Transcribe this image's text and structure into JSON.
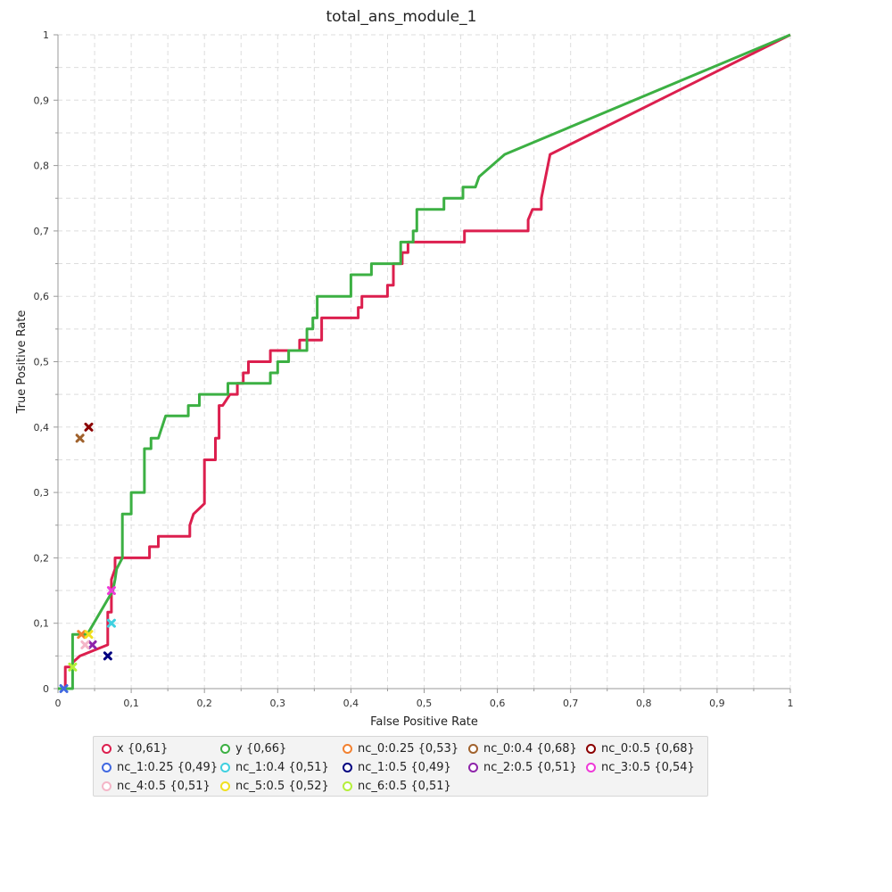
{
  "chart_data": {
    "type": "line",
    "title": "total_ans_module_1",
    "xlabel": "False Positive Rate",
    "ylabel": "True Positive Rate",
    "xlim": [
      0,
      1
    ],
    "ylim": [
      0,
      1
    ],
    "x_ticks": [
      "0",
      "0,1",
      "0,2",
      "0,3",
      "0,4",
      "0,5",
      "0,6",
      "0,7",
      "0,8",
      "0,9",
      "1"
    ],
    "y_ticks": [
      "0",
      "0,1",
      "0,2",
      "0,3",
      "0,4",
      "0,5",
      "0,6",
      "0,7",
      "0,8",
      "0,9",
      "1"
    ],
    "grid": true,
    "legend_position": "bottom",
    "series": [
      {
        "name": "x {0,61}",
        "color": "#dc1f4e",
        "kind": "line",
        "points": [
          [
            0,
            0
          ],
          [
            0.01,
            0
          ],
          [
            0.01,
            0.033
          ],
          [
            0.02,
            0.033
          ],
          [
            0.02,
            0.04
          ],
          [
            0.03,
            0.05
          ],
          [
            0.068,
            0.067
          ],
          [
            0.068,
            0.117
          ],
          [
            0.073,
            0.117
          ],
          [
            0.073,
            0.167
          ],
          [
            0.078,
            0.183
          ],
          [
            0.078,
            0.2
          ],
          [
            0.125,
            0.2
          ],
          [
            0.125,
            0.217
          ],
          [
            0.137,
            0.217
          ],
          [
            0.137,
            0.233
          ],
          [
            0.18,
            0.233
          ],
          [
            0.18,
            0.25
          ],
          [
            0.185,
            0.267
          ],
          [
            0.2,
            0.283
          ],
          [
            0.2,
            0.35
          ],
          [
            0.215,
            0.35
          ],
          [
            0.215,
            0.383
          ],
          [
            0.22,
            0.383
          ],
          [
            0.22,
            0.433
          ],
          [
            0.225,
            0.433
          ],
          [
            0.235,
            0.45
          ],
          [
            0.245,
            0.45
          ],
          [
            0.245,
            0.467
          ],
          [
            0.253,
            0.467
          ],
          [
            0.253,
            0.483
          ],
          [
            0.26,
            0.483
          ],
          [
            0.26,
            0.5
          ],
          [
            0.29,
            0.5
          ],
          [
            0.29,
            0.517
          ],
          [
            0.33,
            0.517
          ],
          [
            0.33,
            0.533
          ],
          [
            0.36,
            0.533
          ],
          [
            0.36,
            0.567
          ],
          [
            0.41,
            0.567
          ],
          [
            0.41,
            0.583
          ],
          [
            0.415,
            0.583
          ],
          [
            0.415,
            0.6
          ],
          [
            0.45,
            0.6
          ],
          [
            0.45,
            0.617
          ],
          [
            0.458,
            0.617
          ],
          [
            0.458,
            0.65
          ],
          [
            0.47,
            0.65
          ],
          [
            0.47,
            0.667
          ],
          [
            0.478,
            0.667
          ],
          [
            0.478,
            0.683
          ],
          [
            0.555,
            0.683
          ],
          [
            0.555,
            0.7
          ],
          [
            0.642,
            0.7
          ],
          [
            0.642,
            0.717
          ],
          [
            0.648,
            0.733
          ],
          [
            0.66,
            0.733
          ],
          [
            0.66,
            0.75
          ],
          [
            0.672,
            0.817
          ],
          [
            1,
            1
          ]
        ]
      },
      {
        "name": "y {0,66}",
        "color": "#3cb043",
        "kind": "line",
        "points": [
          [
            0,
            0
          ],
          [
            0.02,
            0
          ],
          [
            0.02,
            0.083
          ],
          [
            0.04,
            0.083
          ],
          [
            0.075,
            0.15
          ],
          [
            0.078,
            0.167
          ],
          [
            0.08,
            0.183
          ],
          [
            0.088,
            0.2
          ],
          [
            0.088,
            0.267
          ],
          [
            0.1,
            0.267
          ],
          [
            0.1,
            0.3
          ],
          [
            0.118,
            0.3
          ],
          [
            0.118,
            0.367
          ],
          [
            0.127,
            0.367
          ],
          [
            0.127,
            0.383
          ],
          [
            0.137,
            0.383
          ],
          [
            0.147,
            0.417
          ],
          [
            0.178,
            0.417
          ],
          [
            0.178,
            0.433
          ],
          [
            0.193,
            0.433
          ],
          [
            0.193,
            0.45
          ],
          [
            0.232,
            0.45
          ],
          [
            0.232,
            0.467
          ],
          [
            0.29,
            0.467
          ],
          [
            0.29,
            0.483
          ],
          [
            0.3,
            0.483
          ],
          [
            0.3,
            0.5
          ],
          [
            0.315,
            0.5
          ],
          [
            0.315,
            0.517
          ],
          [
            0.34,
            0.517
          ],
          [
            0.34,
            0.55
          ],
          [
            0.348,
            0.55
          ],
          [
            0.348,
            0.567
          ],
          [
            0.354,
            0.567
          ],
          [
            0.354,
            0.6
          ],
          [
            0.4,
            0.6
          ],
          [
            0.4,
            0.633
          ],
          [
            0.428,
            0.633
          ],
          [
            0.428,
            0.65
          ],
          [
            0.468,
            0.65
          ],
          [
            0.468,
            0.683
          ],
          [
            0.485,
            0.683
          ],
          [
            0.485,
            0.7
          ],
          [
            0.49,
            0.7
          ],
          [
            0.49,
            0.733
          ],
          [
            0.527,
            0.733
          ],
          [
            0.527,
            0.75
          ],
          [
            0.553,
            0.75
          ],
          [
            0.553,
            0.767
          ],
          [
            0.57,
            0.767
          ],
          [
            0.575,
            0.783
          ],
          [
            0.61,
            0.817
          ],
          [
            1,
            1
          ]
        ]
      },
      {
        "name": "nc_0:0.25 {0,53}",
        "color": "#f28130",
        "kind": "point",
        "points": [
          [
            0.032,
            0.083
          ]
        ]
      },
      {
        "name": "nc_0:0.4 {0,68}",
        "color": "#a0622d",
        "kind": "point",
        "points": [
          [
            0.03,
            0.383
          ]
        ]
      },
      {
        "name": "nc_0:0.5 {0,68}",
        "color": "#8b0000",
        "kind": "point",
        "points": [
          [
            0.042,
            0.4
          ]
        ]
      },
      {
        "name": "nc_1:0.25 {0,49}",
        "color": "#4169e1",
        "kind": "point",
        "points": [
          [
            0.008,
            0
          ]
        ]
      },
      {
        "name": "nc_1:0.4 {0,51}",
        "color": "#40d0e0",
        "kind": "point",
        "points": [
          [
            0.073,
            0.1
          ]
        ]
      },
      {
        "name": "nc_1:0.5 {0,49}",
        "color": "#000080",
        "kind": "point",
        "points": [
          [
            0.068,
            0.05
          ]
        ]
      },
      {
        "name": "nc_2:0.5 {0,51}",
        "color": "#8e24aa",
        "kind": "point",
        "points": [
          [
            0.047,
            0.067
          ]
        ]
      },
      {
        "name": "nc_3:0.5 {0,54}",
        "color": "#ee3ad8",
        "kind": "point",
        "points": [
          [
            0.073,
            0.15
          ]
        ]
      },
      {
        "name": "nc_4:0.5 {0,51}",
        "color": "#f4b6c8",
        "kind": "point",
        "points": [
          [
            0.037,
            0.067
          ]
        ]
      },
      {
        "name": "nc_5:0.5 {0,52}",
        "color": "#f0e020",
        "kind": "point",
        "points": [
          [
            0.042,
            0.083
          ]
        ]
      },
      {
        "name": "nc_6:0.5 {0,51}",
        "color": "#b5ef3a",
        "kind": "point",
        "points": [
          [
            0.02,
            0.033
          ]
        ]
      }
    ]
  }
}
